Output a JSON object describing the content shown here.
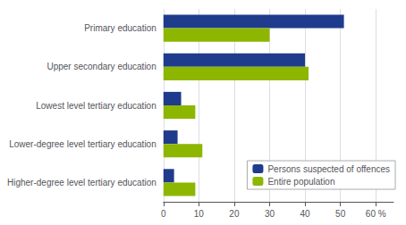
{
  "chart_data": {
    "type": "bar",
    "orientation": "horizontal",
    "categories": [
      "Primary education",
      "Upper secondary education",
      "Lowest level tertiary education",
      "Lower-degree level tertiary education",
      "Higher-degree level tertiary education"
    ],
    "series": [
      {
        "name": "Persons suspected of offences",
        "color": "#1f3b8c",
        "values": [
          51,
          40,
          5,
          4,
          3
        ]
      },
      {
        "name": "Entire population",
        "color": "#8db600",
        "values": [
          30,
          41,
          9,
          11,
          9
        ]
      }
    ],
    "xlim": [
      0,
      65
    ],
    "xticks": [
      0,
      10,
      20,
      30,
      40,
      50,
      {
        "value": 60,
        "label": "60 %"
      }
    ],
    "grid": true,
    "legend": "lower right"
  }
}
